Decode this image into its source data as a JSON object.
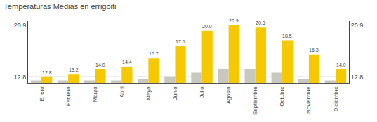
{
  "chart_data": {
    "type": "bar",
    "title": "Temperaturas Medias en errigoiti",
    "categories": [
      "Enero",
      "Febrero",
      "Marzo",
      "Abril",
      "Mayo",
      "Junio",
      "Julio",
      "Agosto",
      "Septiembre",
      "Octubre",
      "Noviembre",
      "Diciembre"
    ],
    "series": [
      {
        "color": "#C8C8BE",
        "values": [
          12.3,
          12.3,
          12.3,
          12.3,
          12.5,
          12.8,
          13.5,
          14.0,
          14.0,
          13.5,
          12.5,
          12.3
        ]
      },
      {
        "color": "#F5C800",
        "values": [
          12.8,
          13.2,
          14.0,
          14.4,
          15.7,
          17.6,
          20.0,
          20.9,
          20.5,
          18.5,
          16.3,
          14.0
        ],
        "value_labels": [
          "12.8",
          "13.2",
          "14.0",
          "14.4",
          "15.7",
          "17.6",
          "20.0",
          "20.9",
          "20.5",
          "18.5",
          "16.3",
          "14.0"
        ],
        "data_labels": true
      }
    ],
    "ylim": [
      11.8,
      21.5
    ],
    "yticks": [
      20.9,
      12.8
    ],
    "y2lim": [
      11.8,
      21.5
    ],
    "y2ticks": [
      20.9,
      12.8
    ],
    "grid": true
  }
}
